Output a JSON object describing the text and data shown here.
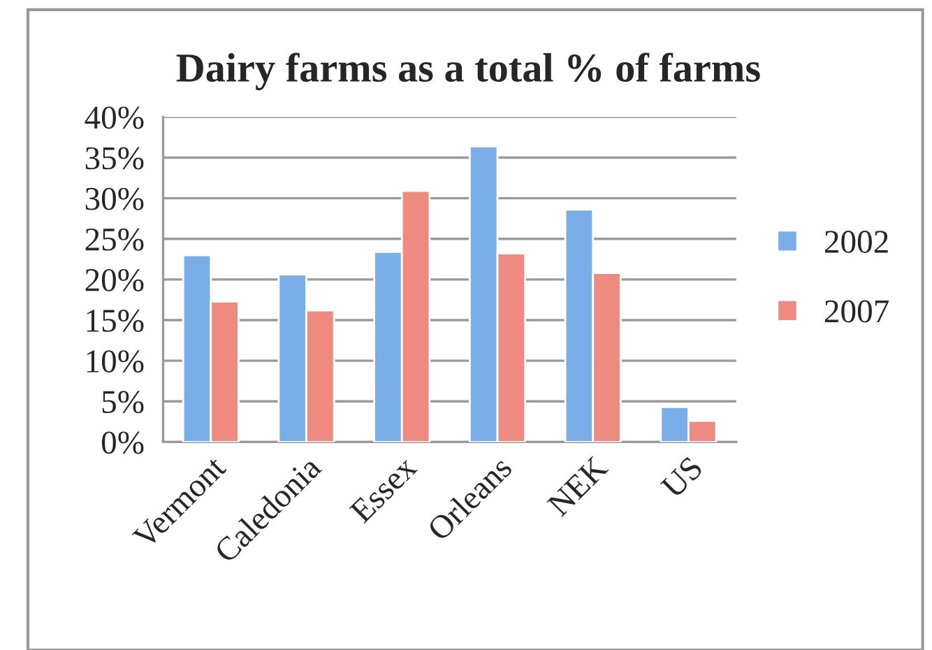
{
  "chart_data": {
    "type": "bar",
    "title": "Dairy farms as a total % of farms",
    "categories": [
      "Vermont",
      "Caledonia",
      "Essex",
      "Orleans",
      "NEK",
      "US"
    ],
    "series": [
      {
        "name": "2002",
        "color": "#7aaee8",
        "values": [
          23.0,
          20.6,
          23.4,
          36.4,
          28.6,
          4.3
        ]
      },
      {
        "name": "2007",
        "color": "#ee8a80",
        "values": [
          17.3,
          16.2,
          30.9,
          23.2,
          20.8,
          2.6
        ]
      }
    ],
    "ylim": [
      0,
      40
    ],
    "yticks": [
      {
        "value": 0,
        "label": "0%"
      },
      {
        "value": 5,
        "label": "5%"
      },
      {
        "value": 10,
        "label": "10%"
      },
      {
        "value": 15,
        "label": "15%"
      },
      {
        "value": 20,
        "label": "20%"
      },
      {
        "value": 25,
        "label": "25%"
      },
      {
        "value": 30,
        "label": "30%"
      },
      {
        "value": 35,
        "label": "35%"
      },
      {
        "value": 40,
        "label": "40%"
      }
    ],
    "grid": "y",
    "legend": "right"
  }
}
